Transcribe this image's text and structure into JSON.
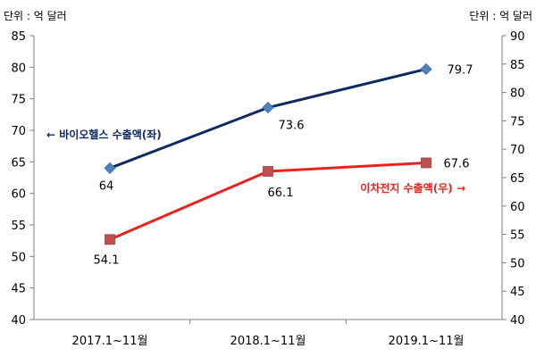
{
  "chart_data": {
    "type": "line",
    "categories": [
      "2017.1~11월",
      "2018.1~11월",
      "2019.1~11월"
    ],
    "unit_left": "단위 : 억 달러",
    "unit_right": "단위 : 억 달러",
    "y_left": {
      "range": [
        40,
        85
      ],
      "ticks": [
        40,
        45,
        50,
        55,
        60,
        65,
        70,
        75,
        80,
        85
      ]
    },
    "y_right": {
      "range": [
        40,
        90
      ],
      "ticks": [
        40,
        45,
        50,
        55,
        60,
        65,
        70,
        75,
        80,
        85,
        90
      ]
    },
    "grid": false,
    "series": [
      {
        "name": "← 바이오헬스 수출액(좌)",
        "axis": "left",
        "values": [
          64,
          73.6,
          79.7
        ],
        "labels": [
          "64",
          "73.6",
          "79.7"
        ],
        "line_color": "#0f2a5e",
        "marker_color": "#4f81bd",
        "marker": "diamond",
        "annotation_color": "#0f2a5e"
      },
      {
        "name": "이차전지 수출액(우) →",
        "axis": "right",
        "values": [
          54.1,
          66.1,
          67.6
        ],
        "labels": [
          "54.1",
          "66.1",
          "67.6"
        ],
        "line_color": "#e8231f",
        "marker_color": "#c0504d",
        "marker": "square",
        "annotation_color": "#e8231f"
      }
    ]
  }
}
